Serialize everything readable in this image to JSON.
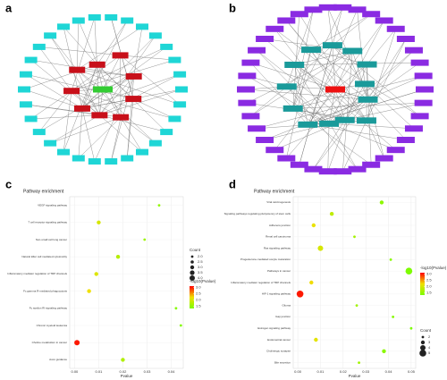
{
  "panel_labels": [
    "a",
    "b",
    "c",
    "d"
  ],
  "chart_data": [
    {
      "type": "scatter",
      "title": "Pathway enrichment",
      "x_label": "Pvalue",
      "categories": [
        "VEGF signaling pathway",
        "T cell receptor signaling pathway",
        "Non-small cell lung cancer",
        "Natural killer cell mediated cytotoxicity",
        "Inflammatory mediator regulation of TRP channels",
        "Fc gamma R-mediated phagocytosis",
        "Fc epsilon RI signaling pathway",
        "Chronic myeloid leukemia",
        "Choline metabolism in cancer",
        "Axon guidance"
      ],
      "values": [
        0.035,
        0.01,
        0.029,
        0.018,
        0.009,
        0.006,
        0.042,
        0.044,
        0.001,
        0.02
      ],
      "count": [
        2,
        3,
        2,
        3,
        3,
        3,
        2,
        2,
        4,
        3
      ],
      "neg_log10_p": [
        1.46,
        2.0,
        1.54,
        1.74,
        2.05,
        2.2,
        1.38,
        1.36,
        3.0,
        1.7
      ],
      "xlim": [
        -0.002,
        0.045
      ],
      "xticks": [
        {
          "value": 0,
          "label": "0.00"
        },
        {
          "value": 0.01,
          "label": "0.01"
        },
        {
          "value": 0.02,
          "label": "0.02"
        },
        {
          "value": 0.03,
          "label": "0.03"
        },
        {
          "value": 0.04,
          "label": "0.04"
        }
      ],
      "size_legend": {
        "title": "Count",
        "values": [
          {
            "value": 2,
            "label": "2.0"
          },
          {
            "value": 2.5,
            "label": "2.5"
          },
          {
            "value": 3,
            "label": "3.0"
          },
          {
            "value": 3.5,
            "label": "3.5"
          },
          {
            "value": 4,
            "label": "4.0"
          }
        ]
      },
      "color_legend": {
        "title": "-log10(Pvalue)",
        "range": [
          1.3,
          3.1
        ],
        "ticks": [
          {
            "value": 1.5,
            "label": "1.5"
          },
          {
            "value": 2,
            "label": "2.0"
          },
          {
            "value": 2.5,
            "label": "2.5"
          },
          {
            "value": 3,
            "label": "3.0"
          }
        ],
        "colors": [
          "#7cfc00",
          "#f0e000",
          "#ff0000"
        ]
      }
    },
    {
      "type": "scatter",
      "title": "Pathway enrichment",
      "x_label": "Pvalue",
      "categories": [
        "Viral carcinogenesis",
        "Signaling pathways regulating pluripotency of stem cells",
        "Adherens junction",
        "Renal cell carcinoma",
        "Ras signaling pathway",
        "Progesterone-mediated oocyte maturation",
        "Pathways in cancer",
        "Inflammatory mediator regulation of TRP channels",
        "HIF-1 signaling pathway",
        "Glioma",
        "Gap junction",
        "Estrogen signaling pathway",
        "Endometrial cancer",
        "Cholinergic synapse",
        "Bile secretion"
      ],
      "values": [
        0.037,
        0.015,
        0.007,
        0.025,
        0.01,
        0.041,
        0.049,
        0.006,
        0.001,
        0.026,
        0.042,
        0.05,
        0.008,
        0.038,
        0.027
      ],
      "count": [
        3,
        3,
        3,
        2,
        4,
        2,
        5,
        3,
        5,
        2,
        2,
        2,
        3,
        3,
        2
      ],
      "neg_log10_p": [
        1.43,
        1.82,
        2.15,
        1.6,
        2.0,
        1.39,
        1.31,
        2.22,
        3.0,
        1.59,
        1.38,
        1.3,
        2.1,
        1.42,
        1.57
      ],
      "xlim": [
        -0.002,
        0.052
      ],
      "xticks": [
        {
          "value": 0,
          "label": "0.00"
        },
        {
          "value": 0.01,
          "label": "0.01"
        },
        {
          "value": 0.02,
          "label": "0.02"
        },
        {
          "value": 0.03,
          "label": "0.03"
        },
        {
          "value": 0.04,
          "label": "0.04"
        },
        {
          "value": 0.05,
          "label": "0.05"
        }
      ],
      "size_legend": {
        "title": "Count",
        "values": [
          2,
          3,
          4,
          5
        ]
      },
      "color_legend": {
        "title": "-log10(Pvalue)",
        "range": [
          1.3,
          3.1
        ],
        "ticks": [
          {
            "value": 1.5,
            "label": "1.5"
          },
          {
            "value": 2,
            "label": "2.0"
          },
          {
            "value": 2.5,
            "label": "2.5"
          },
          {
            "value": 3,
            "label": "3.0"
          }
        ],
        "colors": [
          "#7cfc00",
          "#f0e000",
          "#ff0000"
        ]
      }
    }
  ]
}
